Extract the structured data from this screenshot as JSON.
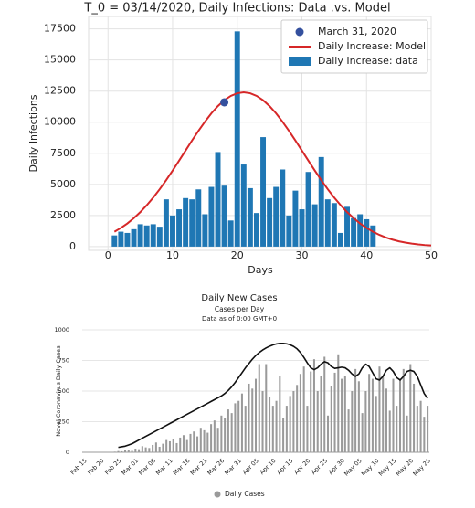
{
  "chart_data": [
    {
      "type": "combo",
      "title": "T_0 = 03/14/2020, Daily Infections: Data .vs. Model",
      "x_label": "Days",
      "y_label": "Daily Infections",
      "xlim": [
        -3,
        50
      ],
      "ylim": [
        -300,
        18500
      ],
      "xticks": [
        0,
        10,
        20,
        30,
        40,
        50
      ],
      "yticks": [
        0,
        2500,
        5000,
        7500,
        10000,
        12500,
        15000,
        17500
      ],
      "grid": true,
      "legend": "upper right",
      "series": [
        {
          "name": "March 31, 2020",
          "type": "scatter",
          "color": "#34509e",
          "x": [
            18
          ],
          "values": [
            11600
          ]
        },
        {
          "name": "Daily Increase: Model",
          "type": "line",
          "color": "#d62728",
          "x": [
            1,
            2,
            3,
            4,
            5,
            6,
            7,
            8,
            9,
            10,
            11,
            12,
            13,
            14,
            15,
            16,
            17,
            18,
            19,
            20,
            21,
            22,
            23,
            24,
            25,
            26,
            27,
            28,
            29,
            30,
            31,
            32,
            33,
            34,
            35,
            36,
            37,
            38,
            39,
            40,
            41,
            42,
            43,
            44,
            45,
            46,
            47,
            48,
            49,
            50
          ],
          "values": [
            1196,
            1502,
            1864,
            2288,
            2775,
            3327,
            3942,
            4617,
            5342,
            6109,
            6908,
            7720,
            8530,
            9307,
            10042,
            10715,
            11293,
            11764,
            12114,
            12328,
            12400,
            12328,
            12114,
            11764,
            11293,
            10715,
            10042,
            9307,
            8530,
            7720,
            6908,
            6109,
            5342,
            4617,
            3942,
            3327,
            2775,
            2288,
            1864,
            1502,
            1196,
            940,
            731,
            562,
            427,
            321,
            238,
            175,
            127,
            91
          ]
        },
        {
          "name": "Daily Increase: data",
          "type": "bar",
          "color": "#1f77b4",
          "x": [
            1,
            2,
            3,
            4,
            5,
            6,
            7,
            8,
            9,
            10,
            11,
            12,
            13,
            14,
            15,
            16,
            17,
            18,
            19,
            20,
            21,
            22,
            23,
            24,
            25,
            26,
            27,
            28,
            29,
            30,
            31,
            32,
            33,
            34,
            35,
            36,
            37,
            38,
            39,
            40,
            41
          ],
          "values": [
            900,
            1200,
            1100,
            1400,
            1800,
            1700,
            1800,
            1600,
            3800,
            2500,
            3000,
            3900,
            3800,
            4600,
            2600,
            4800,
            7600,
            4900,
            2100,
            17300,
            6600,
            4700,
            2700,
            8800,
            3900,
            4800,
            6200,
            2500,
            4500,
            3000,
            6000,
            3400,
            7200,
            3800,
            3500,
            1100,
            3200,
            2300,
            2600,
            2200,
            1700
          ]
        }
      ]
    },
    {
      "type": "combo",
      "title": "Daily New Cases",
      "subtitle": "Cases per Day",
      "note": "Data as of 0:00 GMT+0",
      "y_label": "Novel Coronavirus Daily Cases",
      "ylim": [
        0,
        1000
      ],
      "yticks": [
        0,
        250,
        500,
        750,
        1000
      ],
      "grid": true,
      "legend": "bottom",
      "categories": [
        "Feb 15",
        null,
        null,
        null,
        null,
        "Feb 20",
        null,
        null,
        null,
        null,
        "Feb 25",
        null,
        null,
        null,
        null,
        "Mar 01",
        null,
        null,
        null,
        null,
        "Mar 06",
        null,
        null,
        null,
        null,
        "Mar 11",
        null,
        null,
        null,
        null,
        "Mar 16",
        null,
        null,
        null,
        null,
        "Mar 21",
        null,
        null,
        null,
        null,
        "Mar 26",
        null,
        null,
        null,
        null,
        "Mar 31",
        null,
        null,
        null,
        null,
        "Apr 05",
        null,
        null,
        null,
        null,
        "Apr 10",
        null,
        null,
        null,
        null,
        "Apr 15",
        null,
        null,
        null,
        null,
        "Apr 20",
        null,
        null,
        null,
        null,
        "Apr 25",
        null,
        null,
        null,
        null,
        "Apr 30",
        null,
        null,
        null,
        null,
        "May 05",
        null,
        null,
        null,
        null,
        "May 10",
        null,
        null,
        null,
        null,
        "May 15",
        null,
        null,
        null,
        null,
        "May 20",
        null,
        null,
        null,
        null,
        "May 25"
      ],
      "series": [
        {
          "name": "Daily Cases",
          "type": "bar",
          "color": "#9a9a9a",
          "values": [
            0,
            0,
            0,
            0,
            0,
            0,
            0,
            0,
            0,
            5,
            10,
            8,
            15,
            20,
            12,
            30,
            25,
            50,
            40,
            35,
            60,
            80,
            45,
            70,
            100,
            90,
            110,
            75,
            120,
            140,
            100,
            150,
            170,
            130,
            200,
            180,
            160,
            230,
            260,
            200,
            300,
            280,
            350,
            320,
            400,
            420,
            480,
            380,
            560,
            520,
            600,
            720,
            500,
            720,
            450,
            380,
            420,
            620,
            280,
            380,
            460,
            500,
            550,
            640,
            700,
            380,
            660,
            760,
            500,
            620,
            780,
            300,
            540,
            650,
            800,
            600,
            620,
            350,
            500,
            680,
            580,
            320,
            500,
            640,
            600,
            460,
            700,
            620,
            520,
            340,
            600,
            380,
            600,
            680,
            300,
            720,
            560,
            380,
            420,
            290,
            380
          ]
        },
        {
          "type": "line",
          "color": "#111111",
          "values": [
            null,
            null,
            null,
            null,
            null,
            null,
            null,
            null,
            null,
            null,
            40,
            45,
            50,
            60,
            70,
            85,
            100,
            115,
            130,
            145,
            160,
            175,
            190,
            205,
            220,
            235,
            250,
            265,
            280,
            295,
            310,
            325,
            340,
            355,
            370,
            385,
            400,
            415,
            430,
            445,
            460,
            480,
            505,
            535,
            570,
            610,
            650,
            690,
            725,
            760,
            790,
            815,
            835,
            852,
            866,
            877,
            885,
            890,
            890,
            886,
            878,
            865,
            845,
            815,
            775,
            730,
            690,
            675,
            690,
            720,
            740,
            730,
            700,
            685,
            690,
            695,
            690,
            670,
            640,
            620,
            640,
            690,
            720,
            700,
            650,
            600,
            590,
            620,
            670,
            690,
            660,
            610,
            590,
            620,
            660,
            670,
            660,
            620,
            550,
            480,
            440
          ]
        }
      ]
    }
  ]
}
